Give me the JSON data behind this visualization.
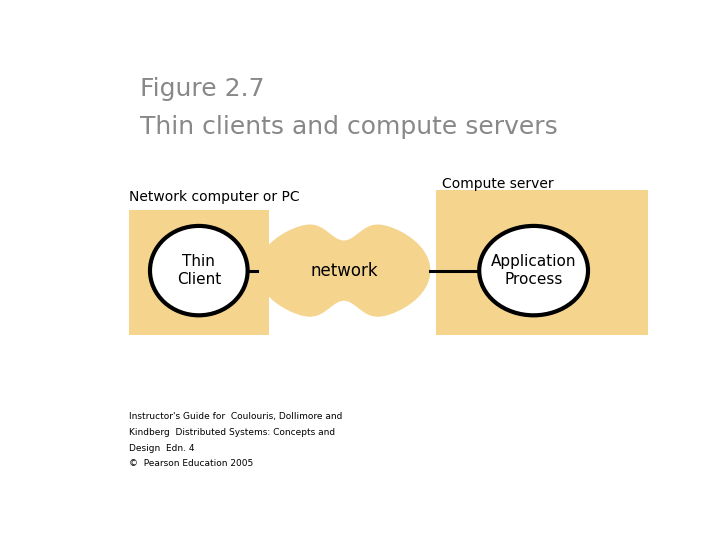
{
  "title_line1": "Figure 2.7",
  "title_line2": "Thin clients and compute servers",
  "title_color": "#888888",
  "background_color": "#ffffff",
  "box_color": "#f5d48e",
  "ellipse_fill_color": "#ffffff",
  "ellipse_edge_color": "#000000",
  "cloud_fill_color": "#f5d48e",
  "label_network_pc": "Network computer or PC",
  "label_compute_server": "Compute server",
  "label_thin_client": "Thin\nClient",
  "label_network": "network",
  "label_app_process": "Application\nProcess",
  "footer_line1": "Instructor's Guide for  Coulouris, Dollimore and",
  "footer_line2": "Kindberg  Distributed Systems: Concepts and",
  "footer_line3": "Design  Edn. 4",
  "footer_line4": "©  Pearson Education 2005",
  "title_fontsize": 18,
  "label_fontsize": 10,
  "ellipse_text_fontsize": 11,
  "footer_fontsize": 6.5
}
